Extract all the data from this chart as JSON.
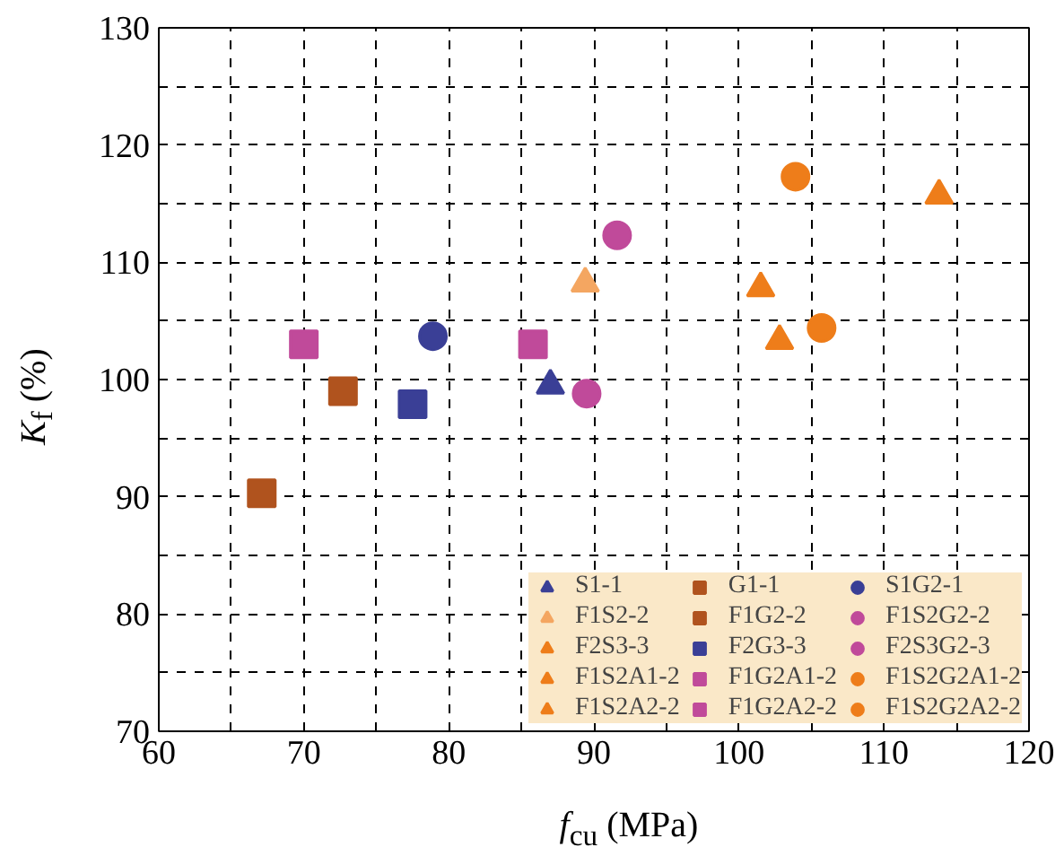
{
  "chart_data": {
    "type": "scatter",
    "xlabel": "f$_{cu}$ (MPa)",
    "ylabel": "K$_{f}$ (%)",
    "xlim": [
      60,
      120
    ],
    "ylim": [
      70,
      130
    ],
    "xticks": [
      60,
      {
        "value": 65,
        "label": null
      },
      70,
      {
        "value": 75,
        "label": null
      },
      80,
      {
        "value": 85,
        "label": null
      },
      90,
      {
        "value": 95,
        "label": null
      },
      100,
      {
        "value": 105,
        "label": null
      },
      110,
      {
        "value": 115,
        "label": null
      },
      120
    ],
    "yticks": [
      70,
      {
        "value": 75,
        "label": null
      },
      80,
      {
        "value": 85,
        "label": null
      },
      90,
      {
        "value": 95,
        "label": null
      },
      100,
      {
        "value": 105,
        "label": null
      },
      110,
      {
        "value": 115,
        "label": null
      },
      120,
      {
        "value": 125,
        "label": null
      },
      130
    ],
    "grid": true,
    "legend": "bottom right",
    "series": [
      {
        "name": "S1-1",
        "color": "#3a3f96",
        "marker": "triangle",
        "x": [
          87
        ],
        "values": [
          99.5
        ]
      },
      {
        "name": "F1S2-2",
        "color": "#f4a661",
        "marker": "triangle",
        "x": [
          89.4
        ],
        "values": [
          108.2
        ]
      },
      {
        "name": "F2S3-3",
        "color": "#ee7d1a",
        "marker": "triangle",
        "x": [
          113.8
        ],
        "values": [
          115.7
        ]
      },
      {
        "name": "F1S2A1-2",
        "color": "#ee7d1a",
        "marker": "triangle",
        "x": [
          101.5
        ],
        "values": [
          107.8
        ]
      },
      {
        "name": "F1S2A2-2",
        "color": "#ee7d1a",
        "marker": "triangle",
        "x": [
          102.8
        ],
        "values": [
          103.3
        ]
      },
      {
        "name": "G1-1",
        "color": "#b0531e",
        "marker": "square",
        "x": [
          67.1
        ],
        "values": [
          90.3
        ]
      },
      {
        "name": "F1G2-2",
        "color": "#b0531e",
        "marker": "square",
        "x": [
          72.7
        ],
        "values": [
          99
        ]
      },
      {
        "name": "F2G3-3",
        "color": "#3a3f96",
        "marker": "square",
        "x": [
          77.5
        ],
        "values": [
          97.9
        ]
      },
      {
        "name": "F1G2A1-2",
        "color": "#c04a9a",
        "marker": "square",
        "x": [
          70
        ],
        "values": [
          103
        ]
      },
      {
        "name": "F1G2A2-2",
        "color": "#c04a9a",
        "marker": "square",
        "x": [
          85.8
        ],
        "values": [
          103
        ]
      },
      {
        "name": "S1G2-1",
        "color": "#3a3f96",
        "marker": "circle",
        "x": [
          78.9
        ],
        "values": [
          103.7
        ]
      },
      {
        "name": "F1S2G2-2",
        "color": "#c04a9a",
        "marker": "circle",
        "x": [
          89.5
        ],
        "values": [
          98.8
        ]
      },
      {
        "name": "F2S3G2-3",
        "color": "#c04a9a",
        "marker": "circle",
        "x": [
          91.6
        ],
        "values": [
          112.3
        ]
      },
      {
        "name": "F1S2G2A1-2",
        "color": "#ee7d1a",
        "marker": "circle",
        "x": [
          103.9
        ],
        "values": [
          117.3
        ]
      },
      {
        "name": "F1S2G2A2-2",
        "color": "#ee7d1a",
        "marker": "circle",
        "x": [
          105.7
        ],
        "values": [
          104.4
        ]
      }
    ]
  }
}
